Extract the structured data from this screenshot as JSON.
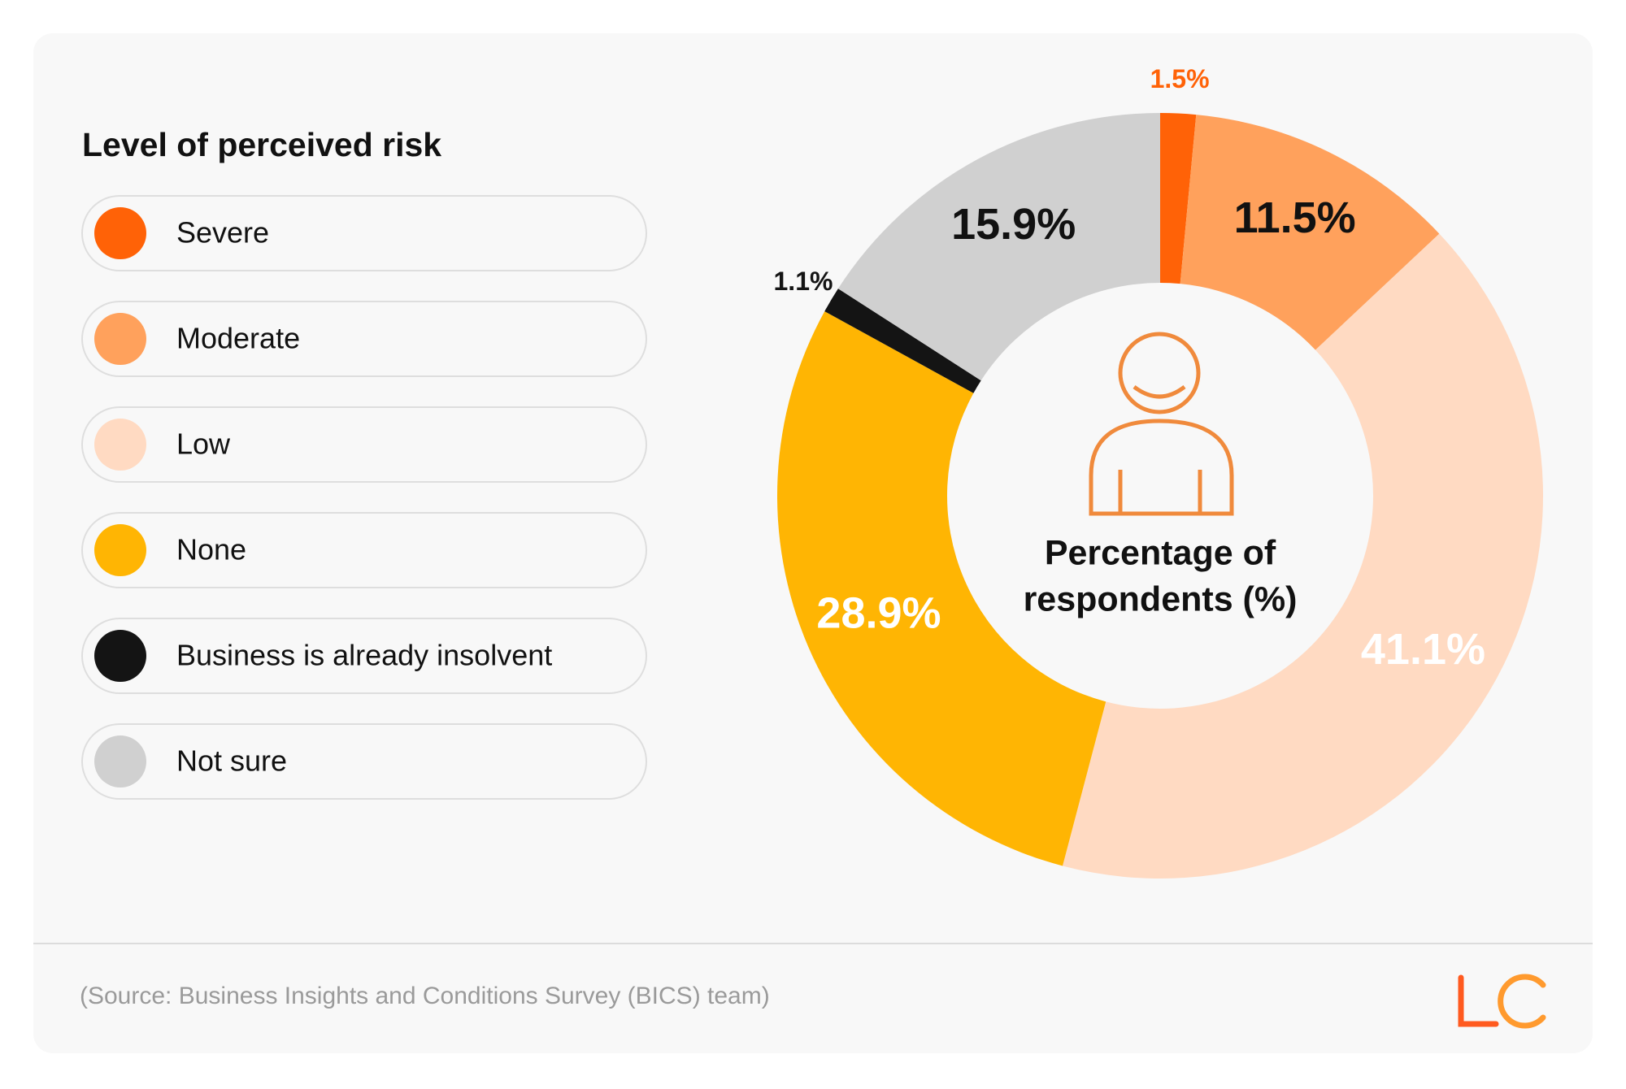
{
  "chart_data": {
    "type": "pie",
    "legend_title": "Level of perceived risk",
    "center_text": [
      "Percentage of",
      "respondents (%)"
    ],
    "categories": [
      "Severe",
      "Moderate",
      "Low",
      "None",
      "Business is already insolvent",
      "Not sure"
    ],
    "values": [
      1.5,
      11.5,
      41.1,
      28.9,
      1.1,
      15.9
    ],
    "value_labels": [
      "1.5%",
      "11.5%",
      "41.1%",
      "28.9%",
      "1.1%",
      "15.9%"
    ],
    "colors": [
      "#ff6207",
      "#ffa15c",
      "#ffdac2",
      "#ffb503",
      "#141414",
      "#d0d0d0"
    ],
    "source": "(Source: Business Insights and Conditions Survey (BICS) team)"
  }
}
